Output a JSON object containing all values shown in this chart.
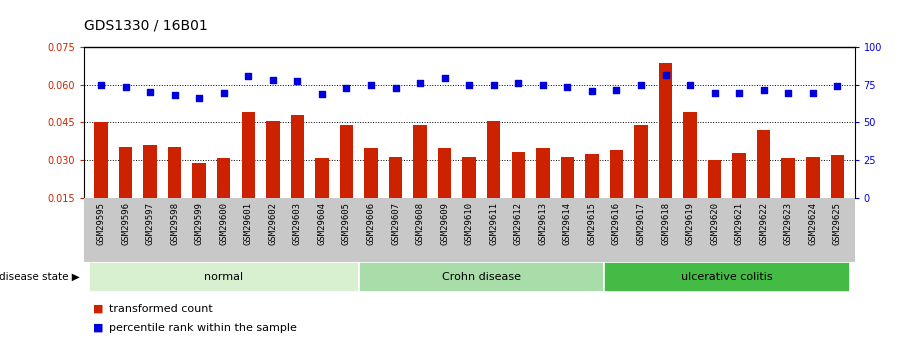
{
  "title": "GDS1330 / 16B01",
  "samples": [
    "GSM29595",
    "GSM29596",
    "GSM29597",
    "GSM29598",
    "GSM29599",
    "GSM29600",
    "GSM29601",
    "GSM29602",
    "GSM29603",
    "GSM29604",
    "GSM29605",
    "GSM29606",
    "GSM29607",
    "GSM29608",
    "GSM29609",
    "GSM29610",
    "GSM29611",
    "GSM29612",
    "GSM29613",
    "GSM29614",
    "GSM29615",
    "GSM29616",
    "GSM29617",
    "GSM29618",
    "GSM29619",
    "GSM29620",
    "GSM29621",
    "GSM29622",
    "GSM29623",
    "GSM29624",
    "GSM29625"
  ],
  "bar_values": [
    0.045,
    0.0355,
    0.036,
    0.0355,
    0.029,
    0.031,
    0.049,
    0.0455,
    0.048,
    0.031,
    0.044,
    0.035,
    0.0315,
    0.044,
    0.035,
    0.0315,
    0.0455,
    0.0335,
    0.035,
    0.0315,
    0.0325,
    0.034,
    0.044,
    0.0685,
    0.049,
    0.03,
    0.033,
    0.042,
    0.031,
    0.0315,
    0.032
  ],
  "dot_values_left": [
    0.06,
    0.059,
    0.057,
    0.0558,
    0.0548,
    0.0568,
    0.0632,
    0.0618,
    0.0613,
    0.0563,
    0.0588,
    0.06,
    0.0588,
    0.0605,
    0.0625,
    0.06,
    0.06,
    0.0605,
    0.06,
    0.059,
    0.0575,
    0.058,
    0.06,
    0.0638,
    0.06,
    0.0568,
    0.0568,
    0.058,
    0.0568,
    0.0568,
    0.0595
  ],
  "groups": [
    {
      "label": "normal",
      "start": 0,
      "end": 11,
      "color": "#d8f0d0"
    },
    {
      "label": "Crohn disease",
      "start": 11,
      "end": 21,
      "color": "#a8dca8"
    },
    {
      "label": "ulcerative colitis",
      "start": 21,
      "end": 31,
      "color": "#44bb44"
    }
  ],
  "bar_color": "#cc2200",
  "dot_color": "#0000dd",
  "ylim_left": [
    0.015,
    0.075
  ],
  "ylim_right": [
    0,
    100
  ],
  "yticks_left": [
    0.015,
    0.03,
    0.045,
    0.06,
    0.075
  ],
  "yticks_right": [
    0,
    25,
    50,
    75,
    100
  ],
  "hlines": [
    0.03,
    0.045,
    0.06
  ],
  "background_color": "#ffffff",
  "legend_items": [
    {
      "label": "transformed count",
      "color": "#cc2200"
    },
    {
      "label": "percentile rank within the sample",
      "color": "#0000dd"
    }
  ],
  "disease_state_label": "disease state",
  "title_fontsize": 10,
  "tick_fontsize": 7,
  "xtick_fontsize": 6.5
}
